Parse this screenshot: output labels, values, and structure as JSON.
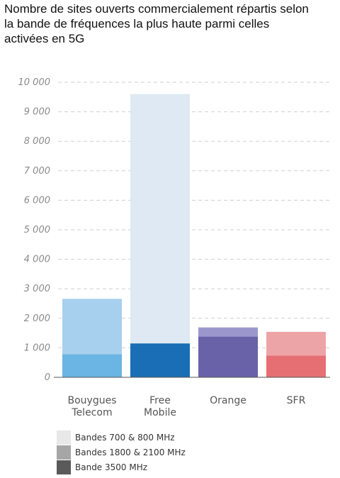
{
  "chart_data": {
    "type": "bar",
    "stacked": true,
    "title": "Nombre de sites ouverts commercialement répartis selon la bande de fréquences la plus haute parmi celles activées en 5G",
    "categories": [
      "Bouygues\nTelecom",
      "Free\nMobile",
      "Orange",
      "SFR"
    ],
    "series": [
      {
        "name": "Bande 3500 MHz",
        "values": [
          780,
          1150,
          1380,
          740
        ]
      },
      {
        "name": "Bandes 1800 & 2100 MHz",
        "values": [
          0,
          0,
          290,
          0
        ]
      },
      {
        "name": "Bandes 700 & 800 MHz",
        "values": [
          1880,
          8450,
          20,
          800
        ]
      }
    ],
    "bar_colors": [
      [
        "#6ab5e3",
        "#1a6eb5",
        "#6962a9",
        "#e56f73"
      ],
      [
        "#a7cfee",
        "#dfe9f3",
        "#9c97cb",
        "#eda4a7"
      ],
      [
        "#a7cfee",
        "#dfe9f3",
        "#9c97cb",
        "#eda4a7"
      ]
    ],
    "ylim": [
      0,
      10000
    ],
    "yticks": [
      "0",
      "1 000",
      "2 000",
      "3 000",
      "4 000",
      "5 000",
      "6 000",
      "7 000",
      "8 000",
      "9 000",
      "10 000"
    ],
    "ytick_values": [
      0,
      1000,
      2000,
      3000,
      4000,
      5000,
      6000,
      7000,
      8000,
      9000,
      10000
    ],
    "grid": true,
    "legend_position": "bottom-left",
    "legend": [
      {
        "label": "Bandes 700 & 800 MHz",
        "color": "#e8e8e8"
      },
      {
        "label": "Bandes 1800 & 2100 MHz",
        "color": "#a6a6a6"
      },
      {
        "label": "Bande 3500 MHz",
        "color": "#5a5a5a"
      }
    ]
  }
}
